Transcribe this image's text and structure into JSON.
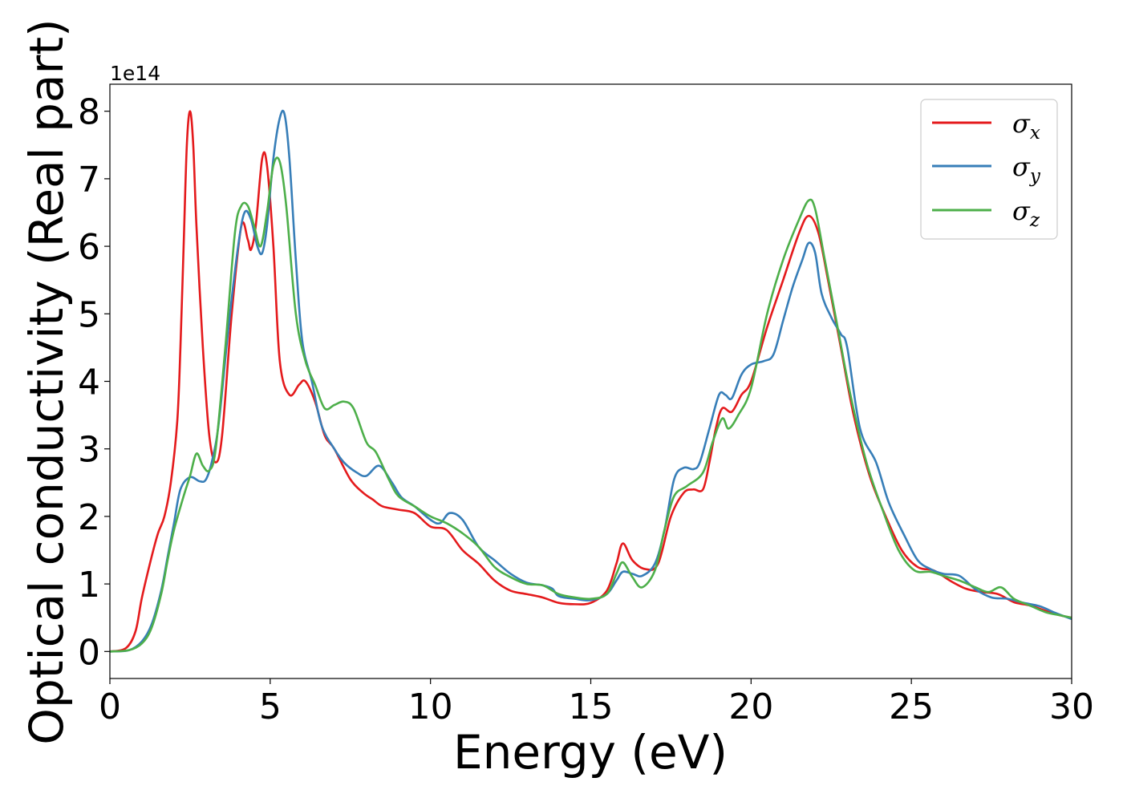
{
  "chart_data": {
    "type": "line",
    "xlabel": "Energy (eV)",
    "ylabel": "Optical conductivity (Real part)",
    "y_offset_label": "1e14",
    "xlim": [
      0,
      30
    ],
    "ylim": [
      -0.4,
      8.4
    ],
    "x_ticks": [
      0,
      5,
      10,
      15,
      20,
      25,
      30
    ],
    "x_tick_labels": [
      "0",
      "5",
      "10",
      "15",
      "20",
      "25",
      "30"
    ],
    "y_ticks": [
      0,
      1,
      2,
      3,
      4,
      5,
      6,
      7,
      8
    ],
    "y_tick_labels": [
      "0",
      "1",
      "2",
      "3",
      "4",
      "5",
      "6",
      "7",
      "8"
    ],
    "grid": false,
    "legend_position": "top-right",
    "series": [
      {
        "name": "σx",
        "legend_base": "σ",
        "legend_sub": "x",
        "color": "#e41a1c",
        "points": [
          [
            0,
            0
          ],
          [
            0.5,
            0.05
          ],
          [
            0.8,
            0.3
          ],
          [
            1.0,
            0.8
          ],
          [
            1.3,
            1.4
          ],
          [
            1.5,
            1.75
          ],
          [
            1.7,
            2.0
          ],
          [
            1.9,
            2.5
          ],
          [
            2.1,
            3.4
          ],
          [
            2.2,
            4.5
          ],
          [
            2.3,
            6.0
          ],
          [
            2.4,
            7.5
          ],
          [
            2.5,
            8.0
          ],
          [
            2.6,
            7.5
          ],
          [
            2.7,
            6.3
          ],
          [
            2.9,
            4.5
          ],
          [
            3.1,
            3.2
          ],
          [
            3.3,
            2.8
          ],
          [
            3.5,
            3.2
          ],
          [
            3.8,
            5.0
          ],
          [
            4.1,
            6.3
          ],
          [
            4.3,
            6.1
          ],
          [
            4.4,
            5.95
          ],
          [
            4.55,
            6.3
          ],
          [
            4.75,
            7.3
          ],
          [
            4.9,
            7.2
          ],
          [
            5.1,
            6.0
          ],
          [
            5.3,
            4.3
          ],
          [
            5.6,
            3.8
          ],
          [
            5.9,
            3.95
          ],
          [
            6.1,
            4.0
          ],
          [
            6.4,
            3.7
          ],
          [
            6.7,
            3.2
          ],
          [
            7.0,
            3.0
          ],
          [
            7.5,
            2.55
          ],
          [
            7.9,
            2.35
          ],
          [
            8.2,
            2.25
          ],
          [
            8.5,
            2.15
          ],
          [
            9.0,
            2.1
          ],
          [
            9.5,
            2.05
          ],
          [
            10.0,
            1.85
          ],
          [
            10.5,
            1.8
          ],
          [
            11.0,
            1.5
          ],
          [
            11.5,
            1.3
          ],
          [
            12.0,
            1.05
          ],
          [
            12.5,
            0.9
          ],
          [
            13.0,
            0.85
          ],
          [
            13.5,
            0.8
          ],
          [
            14.0,
            0.72
          ],
          [
            14.5,
            0.7
          ],
          [
            15.0,
            0.72
          ],
          [
            15.5,
            0.9
          ],
          [
            15.8,
            1.3
          ],
          [
            16.0,
            1.6
          ],
          [
            16.3,
            1.35
          ],
          [
            16.7,
            1.22
          ],
          [
            17.1,
            1.3
          ],
          [
            17.5,
            2.0
          ],
          [
            17.9,
            2.35
          ],
          [
            18.2,
            2.4
          ],
          [
            18.5,
            2.4
          ],
          [
            18.7,
            2.8
          ],
          [
            18.9,
            3.3
          ],
          [
            19.1,
            3.6
          ],
          [
            19.4,
            3.55
          ],
          [
            19.7,
            3.8
          ],
          [
            20.0,
            4.0
          ],
          [
            20.5,
            4.8
          ],
          [
            21.0,
            5.5
          ],
          [
            21.5,
            6.2
          ],
          [
            21.8,
            6.45
          ],
          [
            22.1,
            6.2
          ],
          [
            22.4,
            5.5
          ],
          [
            22.8,
            4.5
          ],
          [
            23.2,
            3.5
          ],
          [
            23.7,
            2.6
          ],
          [
            24.2,
            2.0
          ],
          [
            24.7,
            1.5
          ],
          [
            25.2,
            1.25
          ],
          [
            25.7,
            1.2
          ],
          [
            26.2,
            1.05
          ],
          [
            26.7,
            0.93
          ],
          [
            27.2,
            0.88
          ],
          [
            27.7,
            0.85
          ],
          [
            28.2,
            0.73
          ],
          [
            28.7,
            0.68
          ],
          [
            29.2,
            0.6
          ],
          [
            29.6,
            0.54
          ],
          [
            30.0,
            0.5
          ]
        ]
      },
      {
        "name": "σy",
        "legend_base": "σ",
        "legend_sub": "y",
        "color": "#377eb8",
        "points": [
          [
            0,
            0
          ],
          [
            0.6,
            0.02
          ],
          [
            1.0,
            0.15
          ],
          [
            1.3,
            0.4
          ],
          [
            1.6,
            0.9
          ],
          [
            1.8,
            1.4
          ],
          [
            2.0,
            1.9
          ],
          [
            2.2,
            2.4
          ],
          [
            2.5,
            2.58
          ],
          [
            2.8,
            2.52
          ],
          [
            3.0,
            2.55
          ],
          [
            3.2,
            2.85
          ],
          [
            3.4,
            3.4
          ],
          [
            3.7,
            4.8
          ],
          [
            4.0,
            6.0
          ],
          [
            4.2,
            6.5
          ],
          [
            4.4,
            6.4
          ],
          [
            4.6,
            6.0
          ],
          [
            4.75,
            5.9
          ],
          [
            4.9,
            6.3
          ],
          [
            5.1,
            7.3
          ],
          [
            5.3,
            7.9
          ],
          [
            5.45,
            7.95
          ],
          [
            5.6,
            7.3
          ],
          [
            5.8,
            5.8
          ],
          [
            6.0,
            4.6
          ],
          [
            6.3,
            4.0
          ],
          [
            6.6,
            3.35
          ],
          [
            7.0,
            3.0
          ],
          [
            7.3,
            2.8
          ],
          [
            7.7,
            2.65
          ],
          [
            8.0,
            2.6
          ],
          [
            8.4,
            2.75
          ],
          [
            8.8,
            2.5
          ],
          [
            9.1,
            2.28
          ],
          [
            9.5,
            2.15
          ],
          [
            10.0,
            1.95
          ],
          [
            10.3,
            1.9
          ],
          [
            10.6,
            2.05
          ],
          [
            11.0,
            1.95
          ],
          [
            11.5,
            1.55
          ],
          [
            12.0,
            1.35
          ],
          [
            12.5,
            1.15
          ],
          [
            13.0,
            1.02
          ],
          [
            13.5,
            0.98
          ],
          [
            13.8,
            0.93
          ],
          [
            14.0,
            0.82
          ],
          [
            14.5,
            0.78
          ],
          [
            15.0,
            0.76
          ],
          [
            15.5,
            0.85
          ],
          [
            15.8,
            1.05
          ],
          [
            16.0,
            1.18
          ],
          [
            16.3,
            1.15
          ],
          [
            16.6,
            1.12
          ],
          [
            17.0,
            1.3
          ],
          [
            17.3,
            1.8
          ],
          [
            17.6,
            2.55
          ],
          [
            17.9,
            2.72
          ],
          [
            18.2,
            2.7
          ],
          [
            18.4,
            2.8
          ],
          [
            18.7,
            3.3
          ],
          [
            19.0,
            3.8
          ],
          [
            19.2,
            3.8
          ],
          [
            19.4,
            3.75
          ],
          [
            19.7,
            4.1
          ],
          [
            20.0,
            4.25
          ],
          [
            20.4,
            4.3
          ],
          [
            20.7,
            4.4
          ],
          [
            21.0,
            4.9
          ],
          [
            21.3,
            5.4
          ],
          [
            21.6,
            5.8
          ],
          [
            21.8,
            6.05
          ],
          [
            22.0,
            5.9
          ],
          [
            22.2,
            5.3
          ],
          [
            22.5,
            4.95
          ],
          [
            22.8,
            4.7
          ],
          [
            23.0,
            4.5
          ],
          [
            23.4,
            3.3
          ],
          [
            23.9,
            2.8
          ],
          [
            24.3,
            2.2
          ],
          [
            24.8,
            1.7
          ],
          [
            25.2,
            1.35
          ],
          [
            25.6,
            1.22
          ],
          [
            26.0,
            1.15
          ],
          [
            26.5,
            1.12
          ],
          [
            27.0,
            0.92
          ],
          [
            27.5,
            0.8
          ],
          [
            28.0,
            0.78
          ],
          [
            28.5,
            0.72
          ],
          [
            29.0,
            0.67
          ],
          [
            29.5,
            0.57
          ],
          [
            30.0,
            0.48
          ]
        ]
      },
      {
        "name": "σz",
        "legend_base": "σ",
        "legend_sub": "z",
        "color": "#4daf4a",
        "points": [
          [
            0,
            0
          ],
          [
            0.6,
            0.02
          ],
          [
            1.0,
            0.12
          ],
          [
            1.3,
            0.35
          ],
          [
            1.6,
            0.85
          ],
          [
            1.8,
            1.35
          ],
          [
            2.0,
            1.8
          ],
          [
            2.3,
            2.3
          ],
          [
            2.5,
            2.6
          ],
          [
            2.7,
            2.93
          ],
          [
            2.9,
            2.75
          ],
          [
            3.1,
            2.68
          ],
          [
            3.3,
            3.0
          ],
          [
            3.6,
            4.5
          ],
          [
            3.9,
            6.2
          ],
          [
            4.1,
            6.6
          ],
          [
            4.3,
            6.6
          ],
          [
            4.5,
            6.3
          ],
          [
            4.7,
            6.0
          ],
          [
            4.9,
            6.5
          ],
          [
            5.1,
            7.2
          ],
          [
            5.3,
            7.25
          ],
          [
            5.5,
            6.6
          ],
          [
            5.8,
            5.0
          ],
          [
            6.1,
            4.3
          ],
          [
            6.4,
            3.95
          ],
          [
            6.7,
            3.6
          ],
          [
            7.0,
            3.65
          ],
          [
            7.3,
            3.7
          ],
          [
            7.6,
            3.6
          ],
          [
            8.0,
            3.1
          ],
          [
            8.3,
            2.95
          ],
          [
            8.7,
            2.55
          ],
          [
            9.0,
            2.3
          ],
          [
            9.5,
            2.15
          ],
          [
            10.0,
            2.0
          ],
          [
            10.5,
            1.9
          ],
          [
            11.0,
            1.75
          ],
          [
            11.5,
            1.55
          ],
          [
            12.0,
            1.25
          ],
          [
            12.5,
            1.1
          ],
          [
            13.0,
            1.0
          ],
          [
            13.5,
            0.98
          ],
          [
            14.0,
            0.85
          ],
          [
            14.5,
            0.8
          ],
          [
            15.0,
            0.78
          ],
          [
            15.5,
            0.85
          ],
          [
            15.8,
            1.15
          ],
          [
            16.0,
            1.32
          ],
          [
            16.3,
            1.1
          ],
          [
            16.6,
            0.95
          ],
          [
            17.0,
            1.2
          ],
          [
            17.3,
            1.8
          ],
          [
            17.6,
            2.3
          ],
          [
            18.0,
            2.45
          ],
          [
            18.5,
            2.65
          ],
          [
            18.8,
            3.1
          ],
          [
            19.1,
            3.45
          ],
          [
            19.3,
            3.3
          ],
          [
            19.6,
            3.5
          ],
          [
            20.0,
            3.9
          ],
          [
            20.5,
            5.0
          ],
          [
            21.0,
            5.8
          ],
          [
            21.5,
            6.4
          ],
          [
            21.8,
            6.68
          ],
          [
            22.0,
            6.55
          ],
          [
            22.3,
            5.8
          ],
          [
            22.7,
            4.8
          ],
          [
            23.1,
            3.8
          ],
          [
            23.6,
            2.8
          ],
          [
            24.1,
            2.1
          ],
          [
            24.6,
            1.5
          ],
          [
            25.1,
            1.2
          ],
          [
            25.6,
            1.18
          ],
          [
            26.0,
            1.12
          ],
          [
            26.5,
            1.05
          ],
          [
            27.0,
            0.95
          ],
          [
            27.4,
            0.88
          ],
          [
            27.8,
            0.95
          ],
          [
            28.2,
            0.78
          ],
          [
            28.7,
            0.68
          ],
          [
            29.2,
            0.58
          ],
          [
            29.6,
            0.54
          ],
          [
            30.0,
            0.5
          ]
        ]
      }
    ]
  }
}
